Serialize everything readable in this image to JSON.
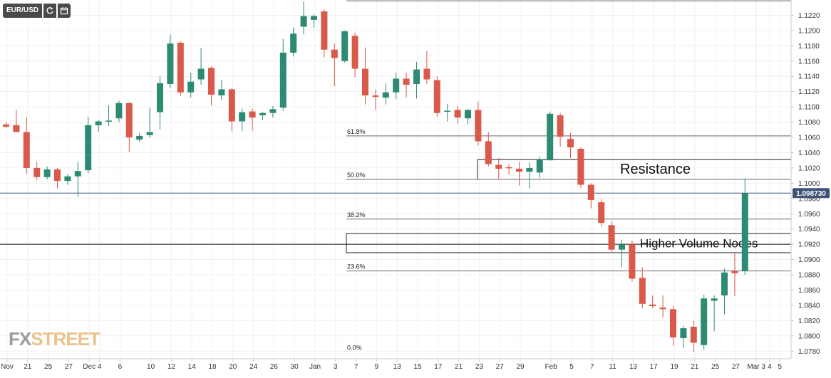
{
  "header": {
    "symbol_label": "EUR/USD",
    "icons": [
      "refresh-icon",
      "calendar-icon"
    ]
  },
  "watermark": {
    "fx": "FX",
    "street": "STREET"
  },
  "chart_data": {
    "type": "candlestick",
    "title": "",
    "ylim": [
      1.077,
      1.124
    ],
    "y_ticks": [
      1.078,
      1.08,
      1.082,
      1.084,
      1.086,
      1.088,
      1.09,
      1.092,
      1.094,
      1.096,
      1.098,
      1.1,
      1.102,
      1.104,
      1.106,
      1.108,
      1.11,
      1.112,
      1.114,
      1.116,
      1.118,
      1.12,
      1.122
    ],
    "x_tick_labels": [
      "Nov",
      "21",
      "25",
      "27",
      "Dec",
      "4",
      "6",
      "10",
      "12",
      "14",
      "18",
      "20",
      "24",
      "26",
      "30",
      "Jan",
      "3",
      "7",
      "9",
      "13",
      "15",
      "17",
      "21",
      "23",
      "27",
      "29",
      "Feb",
      "5",
      "7",
      "11",
      "13",
      "17",
      "19",
      "21",
      "25",
      "27",
      "Mar 3",
      "4",
      "5"
    ],
    "candles": [
      {
        "o": 1.1077,
        "h": 1.108,
        "l": 1.1072,
        "c": 1.1074
      },
      {
        "o": 1.1076,
        "h": 1.1096,
        "l": 1.1068,
        "c": 1.1067
      },
      {
        "o": 1.1067,
        "h": 1.1087,
        "l": 1.1012,
        "c": 1.102
      },
      {
        "o": 1.102,
        "h": 1.1028,
        "l": 1.1004,
        "c": 1.1008
      },
      {
        "o": 1.1008,
        "h": 1.1022,
        "l": 1.1005,
        "c": 1.1018
      },
      {
        "o": 1.1018,
        "h": 1.102,
        "l": 1.0993,
        "c": 1.1003
      },
      {
        "o": 1.1003,
        "h": 1.1012,
        "l": 1.0998,
        "c": 1.1009
      },
      {
        "o": 1.1009,
        "h": 1.1028,
        "l": 1.0982,
        "c": 1.1016
      },
      {
        "o": 1.1017,
        "h": 1.1087,
        "l": 1.1013,
        "c": 1.1076
      },
      {
        "o": 1.1076,
        "h": 1.1083,
        "l": 1.1067,
        "c": 1.1081
      },
      {
        "o": 1.1082,
        "h": 1.1102,
        "l": 1.1075,
        "c": 1.1082
      },
      {
        "o": 1.1085,
        "h": 1.1108,
        "l": 1.108,
        "c": 1.1105
      },
      {
        "o": 1.1105,
        "h": 1.1106,
        "l": 1.1041,
        "c": 1.106
      },
      {
        "o": 1.1057,
        "h": 1.1066,
        "l": 1.1054,
        "c": 1.1062
      },
      {
        "o": 1.1063,
        "h": 1.1099,
        "l": 1.106,
        "c": 1.1067
      },
      {
        "o": 1.1093,
        "h": 1.114,
        "l": 1.107,
        "c": 1.1131
      },
      {
        "o": 1.113,
        "h": 1.1195,
        "l": 1.1125,
        "c": 1.1183
      },
      {
        "o": 1.1184,
        "h": 1.1186,
        "l": 1.1114,
        "c": 1.1119
      },
      {
        "o": 1.1119,
        "h": 1.1145,
        "l": 1.1112,
        "c": 1.1133
      },
      {
        "o": 1.1136,
        "h": 1.1177,
        "l": 1.1129,
        "c": 1.115
      },
      {
        "o": 1.1151,
        "h": 1.1153,
        "l": 1.1102,
        "c": 1.1116
      },
      {
        "o": 1.1115,
        "h": 1.1135,
        "l": 1.1109,
        "c": 1.1123
      },
      {
        "o": 1.1123,
        "h": 1.1125,
        "l": 1.1068,
        "c": 1.1081
      },
      {
        "o": 1.1081,
        "h": 1.1098,
        "l": 1.1068,
        "c": 1.1093
      },
      {
        "o": 1.1094,
        "h": 1.1098,
        "l": 1.1069,
        "c": 1.1086
      },
      {
        "o": 1.1089,
        "h": 1.1093,
        "l": 1.1083,
        "c": 1.1092
      },
      {
        "o": 1.1092,
        "h": 1.1101,
        "l": 1.1086,
        "c": 1.1097
      },
      {
        "o": 1.1099,
        "h": 1.1189,
        "l": 1.1095,
        "c": 1.1171
      },
      {
        "o": 1.1171,
        "h": 1.1204,
        "l": 1.1166,
        "c": 1.1196
      },
      {
        "o": 1.1205,
        "h": 1.1238,
        "l": 1.1195,
        "c": 1.1219
      },
      {
        "o": 1.1214,
        "h": 1.1221,
        "l": 1.1204,
        "c": 1.1219
      },
      {
        "o": 1.1225,
        "h": 1.1228,
        "l": 1.1165,
        "c": 1.1175
      },
      {
        "o": 1.1175,
        "h": 1.1183,
        "l": 1.1127,
        "c": 1.1164
      },
      {
        "o": 1.116,
        "h": 1.12,
        "l": 1.1158,
        "c": 1.1199
      },
      {
        "o": 1.1193,
        "h": 1.1197,
        "l": 1.1139,
        "c": 1.115
      },
      {
        "o": 1.115,
        "h": 1.1178,
        "l": 1.1103,
        "c": 1.1115
      },
      {
        "o": 1.1115,
        "h": 1.1123,
        "l": 1.1096,
        "c": 1.1113
      },
      {
        "o": 1.1112,
        "h": 1.1131,
        "l": 1.1103,
        "c": 1.1119
      },
      {
        "o": 1.1119,
        "h": 1.1145,
        "l": 1.111,
        "c": 1.1137
      },
      {
        "o": 1.1137,
        "h": 1.1145,
        "l": 1.1112,
        "c": 1.1129
      },
      {
        "o": 1.113,
        "h": 1.1159,
        "l": 1.1111,
        "c": 1.1149
      },
      {
        "o": 1.115,
        "h": 1.1173,
        "l": 1.113,
        "c": 1.1136
      },
      {
        "o": 1.1135,
        "h": 1.114,
        "l": 1.1087,
        "c": 1.1092
      },
      {
        "o": 1.1094,
        "h": 1.1104,
        "l": 1.1081,
        "c": 1.1095
      },
      {
        "o": 1.1096,
        "h": 1.1101,
        "l": 1.1078,
        "c": 1.1086
      },
      {
        "o": 1.1085,
        "h": 1.1097,
        "l": 1.1077,
        "c": 1.1096
      },
      {
        "o": 1.1096,
        "h": 1.1107,
        "l": 1.1049,
        "c": 1.1055
      },
      {
        "o": 1.1055,
        "h": 1.1067,
        "l": 1.1022,
        "c": 1.1025
      },
      {
        "o": 1.1024,
        "h": 1.1033,
        "l": 1.1006,
        "c": 1.1019
      },
      {
        "o": 1.1021,
        "h": 1.1025,
        "l": 1.1011,
        "c": 1.102
      },
      {
        "o": 1.1019,
        "h": 1.1028,
        "l": 1.0997,
        "c": 1.1015
      },
      {
        "o": 1.1015,
        "h": 1.1027,
        "l": 1.0993,
        "c": 1.102
      },
      {
        "o": 1.1014,
        "h": 1.1035,
        "l": 1.1007,
        "c": 1.1031
      },
      {
        "o": 1.103,
        "h": 1.1094,
        "l": 1.103,
        "c": 1.1091
      },
      {
        "o": 1.1089,
        "h": 1.1092,
        "l": 1.1048,
        "c": 1.1061
      },
      {
        "o": 1.1058,
        "h": 1.1066,
        "l": 1.1033,
        "c": 1.1047
      },
      {
        "o": 1.1045,
        "h": 1.1047,
        "l": 1.0994,
        "c": 1.0998
      },
      {
        "o": 1.0998,
        "h": 1.1,
        "l": 1.0967,
        "c": 1.0978
      },
      {
        "o": 1.0975,
        "h": 1.0979,
        "l": 1.0943,
        "c": 1.0948
      },
      {
        "o": 1.0945,
        "h": 1.095,
        "l": 1.091,
        "c": 1.0913
      },
      {
        "o": 1.0913,
        "h": 1.0926,
        "l": 1.089,
        "c": 1.092
      },
      {
        "o": 1.092,
        "h": 1.0925,
        "l": 1.0871,
        "c": 1.0875
      },
      {
        "o": 1.0876,
        "h": 1.089,
        "l": 1.0836,
        "c": 1.0842
      },
      {
        "o": 1.0841,
        "h": 1.0853,
        "l": 1.0836,
        "c": 1.0839
      },
      {
        "o": 1.0837,
        "h": 1.0853,
        "l": 1.0824,
        "c": 1.0835
      },
      {
        "o": 1.0835,
        "h": 1.0839,
        "l": 1.0787,
        "c": 1.0798
      },
      {
        "o": 1.0797,
        "h": 1.0813,
        "l": 1.0784,
        "c": 1.081
      },
      {
        "o": 1.0812,
        "h": 1.082,
        "l": 1.0779,
        "c": 1.0791
      },
      {
        "o": 1.0788,
        "h": 1.0854,
        "l": 1.0782,
        "c": 1.0849
      },
      {
        "o": 1.0846,
        "h": 1.0853,
        "l": 1.0806,
        "c": 1.0849
      },
      {
        "o": 1.0853,
        "h": 1.0888,
        "l": 1.0828,
        "c": 1.0883
      },
      {
        "o": 1.0885,
        "h": 1.0908,
        "l": 1.0852,
        "c": 1.0882
      },
      {
        "o": 1.0885,
        "h": 1.1006,
        "l": 1.088,
        "c": 1.0987
      }
    ],
    "hlines": [
      {
        "value": 1.1239
      },
      {
        "value": 1.1062
      },
      {
        "value": 1.1005
      },
      {
        "value": 1.0953
      },
      {
        "value": 1.0885
      },
      {
        "value": 1.092
      }
    ],
    "fib_levels": [
      {
        "label": "61.8%",
        "value": 1.1062
      },
      {
        "label": "50.0%",
        "value": 1.1005
      },
      {
        "label": "38.2%",
        "value": 1.0953
      },
      {
        "label": "23.6%",
        "value": 1.0885
      },
      {
        "label": "0.0%",
        "value": 1.0779
      }
    ],
    "zones": [
      {
        "label": "Resistance",
        "from": 1.1005,
        "to": 1.1031
      },
      {
        "label": "Higher Volume Nodes",
        "from": 1.0909,
        "to": 1.0934
      }
    ],
    "current_price": {
      "value": 1.0987,
      "label": "1.098730"
    },
    "colors": {
      "up": "#2e8b73",
      "down": "#d9594a",
      "price_tag": "#3d5478",
      "line": "#6a6a6a"
    }
  }
}
